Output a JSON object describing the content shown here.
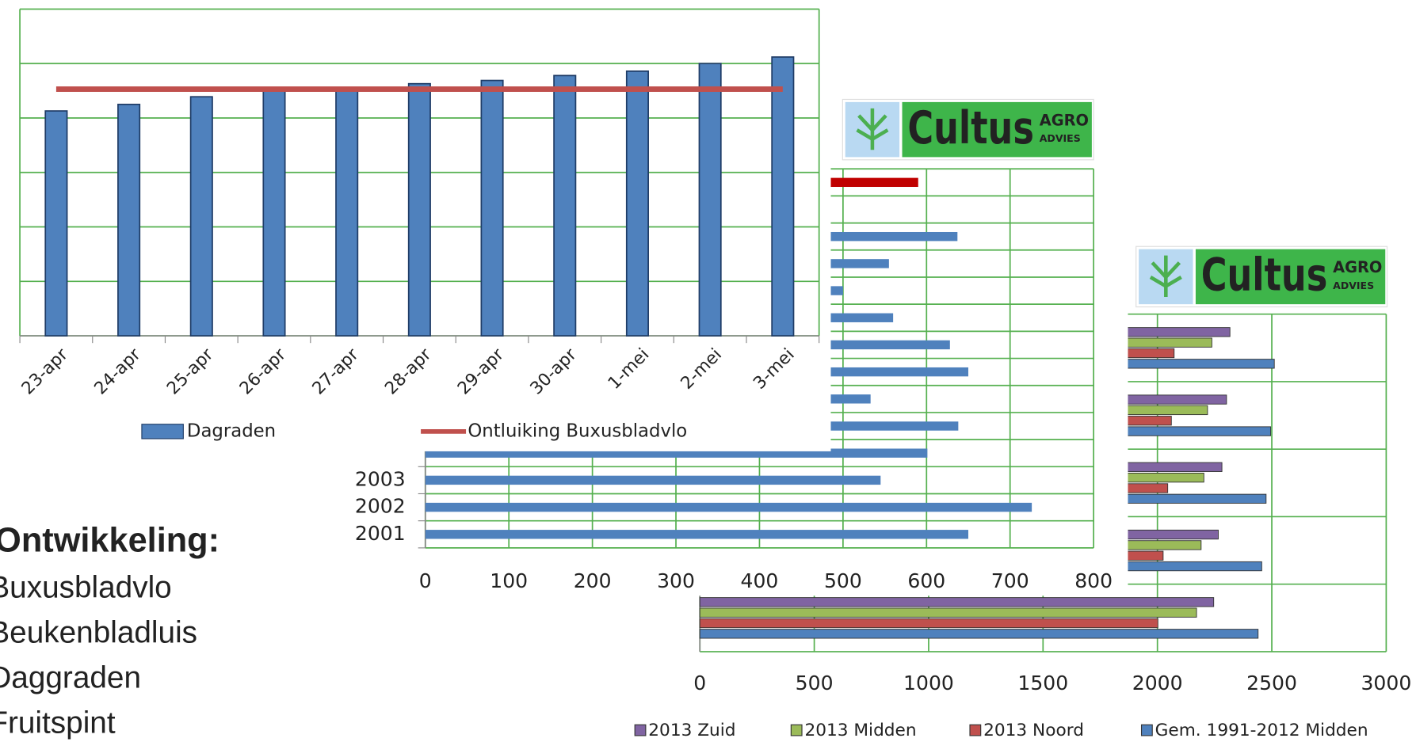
{
  "chart_data": [
    {
      "type": "bar",
      "categories": [
        "23-apr",
        "24-apr",
        "25-apr",
        "26-apr",
        "27-apr",
        "28-apr",
        "29-apr",
        "30-apr",
        "1-mei",
        "2-mei",
        "3-mei"
      ],
      "series": [
        {
          "name": "Dagraden",
          "color": "#4f81bd",
          "values": [
            4.13,
            4.25,
            4.39,
            4.54,
            4.54,
            4.63,
            4.69,
            4.78,
            4.86,
            5.0,
            5.12
          ]
        },
        {
          "name": "Ontluiking Buxusbladvlo",
          "type": "line",
          "color": "#c0504d",
          "values": [
            4.53,
            4.53,
            4.53,
            4.53,
            4.53,
            4.53,
            4.53,
            4.53,
            4.53,
            4.53,
            4.53
          ]
        }
      ],
      "ylim": [
        0,
        6
      ],
      "yticks": [
        0,
        1,
        2,
        3,
        4,
        5,
        6
      ],
      "grid": true,
      "grid_color": "#55b04f",
      "legend": "bottom"
    },
    {
      "type": "barh",
      "categories": [
        null,
        null,
        null,
        null,
        null,
        null,
        null,
        null,
        null,
        null,
        null,
        "2003",
        "2002",
        "2001"
      ],
      "values": [
        590,
        null,
        637,
        555,
        500,
        560,
        628,
        650,
        533,
        638,
        601,
        545,
        726,
        650
      ],
      "colors": [
        "#c00000",
        "#4f81bd",
        "#4f81bd",
        "#4f81bd",
        "#4f81bd",
        "#4f81bd",
        "#4f81bd",
        "#4f81bd",
        "#4f81bd",
        "#4f81bd",
        "#4f81bd",
        "#4f81bd",
        "#4f81bd",
        "#4f81bd"
      ],
      "xlim": [
        0,
        800
      ],
      "xticks": [
        0,
        100,
        200,
        300,
        400,
        500,
        600,
        700,
        800
      ],
      "grid": true,
      "grid_color": "#55b04f"
    },
    {
      "type": "grouped_barh",
      "categories": [
        null,
        null,
        null,
        null,
        null
      ],
      "series": [
        {
          "name": "2013 Zuid",
          "color": "#8064a2",
          "values": [
            2317,
            2302,
            2282,
            2266,
            2246
          ]
        },
        {
          "name": "2013 Midden",
          "color": "#9bbb59",
          "values": [
            2238,
            2219,
            2203,
            2191,
            2171
          ]
        },
        {
          "name": "2013 Noord",
          "color": "#c0504d",
          "values": [
            2073,
            2061,
            2045,
            2025,
            2002
          ]
        },
        {
          "name": "Gem. 1991-2012 Midden",
          "color": "#4f81bd",
          "values": [
            2511,
            2495,
            2475,
            2456,
            2440
          ]
        }
      ],
      "xlim": [
        0,
        3000
      ],
      "xticks": [
        0,
        500,
        1000,
        1500,
        2000,
        2500,
        3000
      ],
      "grid": true,
      "grid_color": "#55b04f",
      "legend": "bottom"
    }
  ],
  "logo": {
    "brand": "Cultus",
    "tag1": "AGRO",
    "tag2": "ADVIES"
  },
  "text": {
    "heading": "Ontwikkeling:",
    "items": [
      "Buxusbladvlo",
      "Beukenbladluis",
      "Daggraden",
      "Fruitspint"
    ]
  }
}
